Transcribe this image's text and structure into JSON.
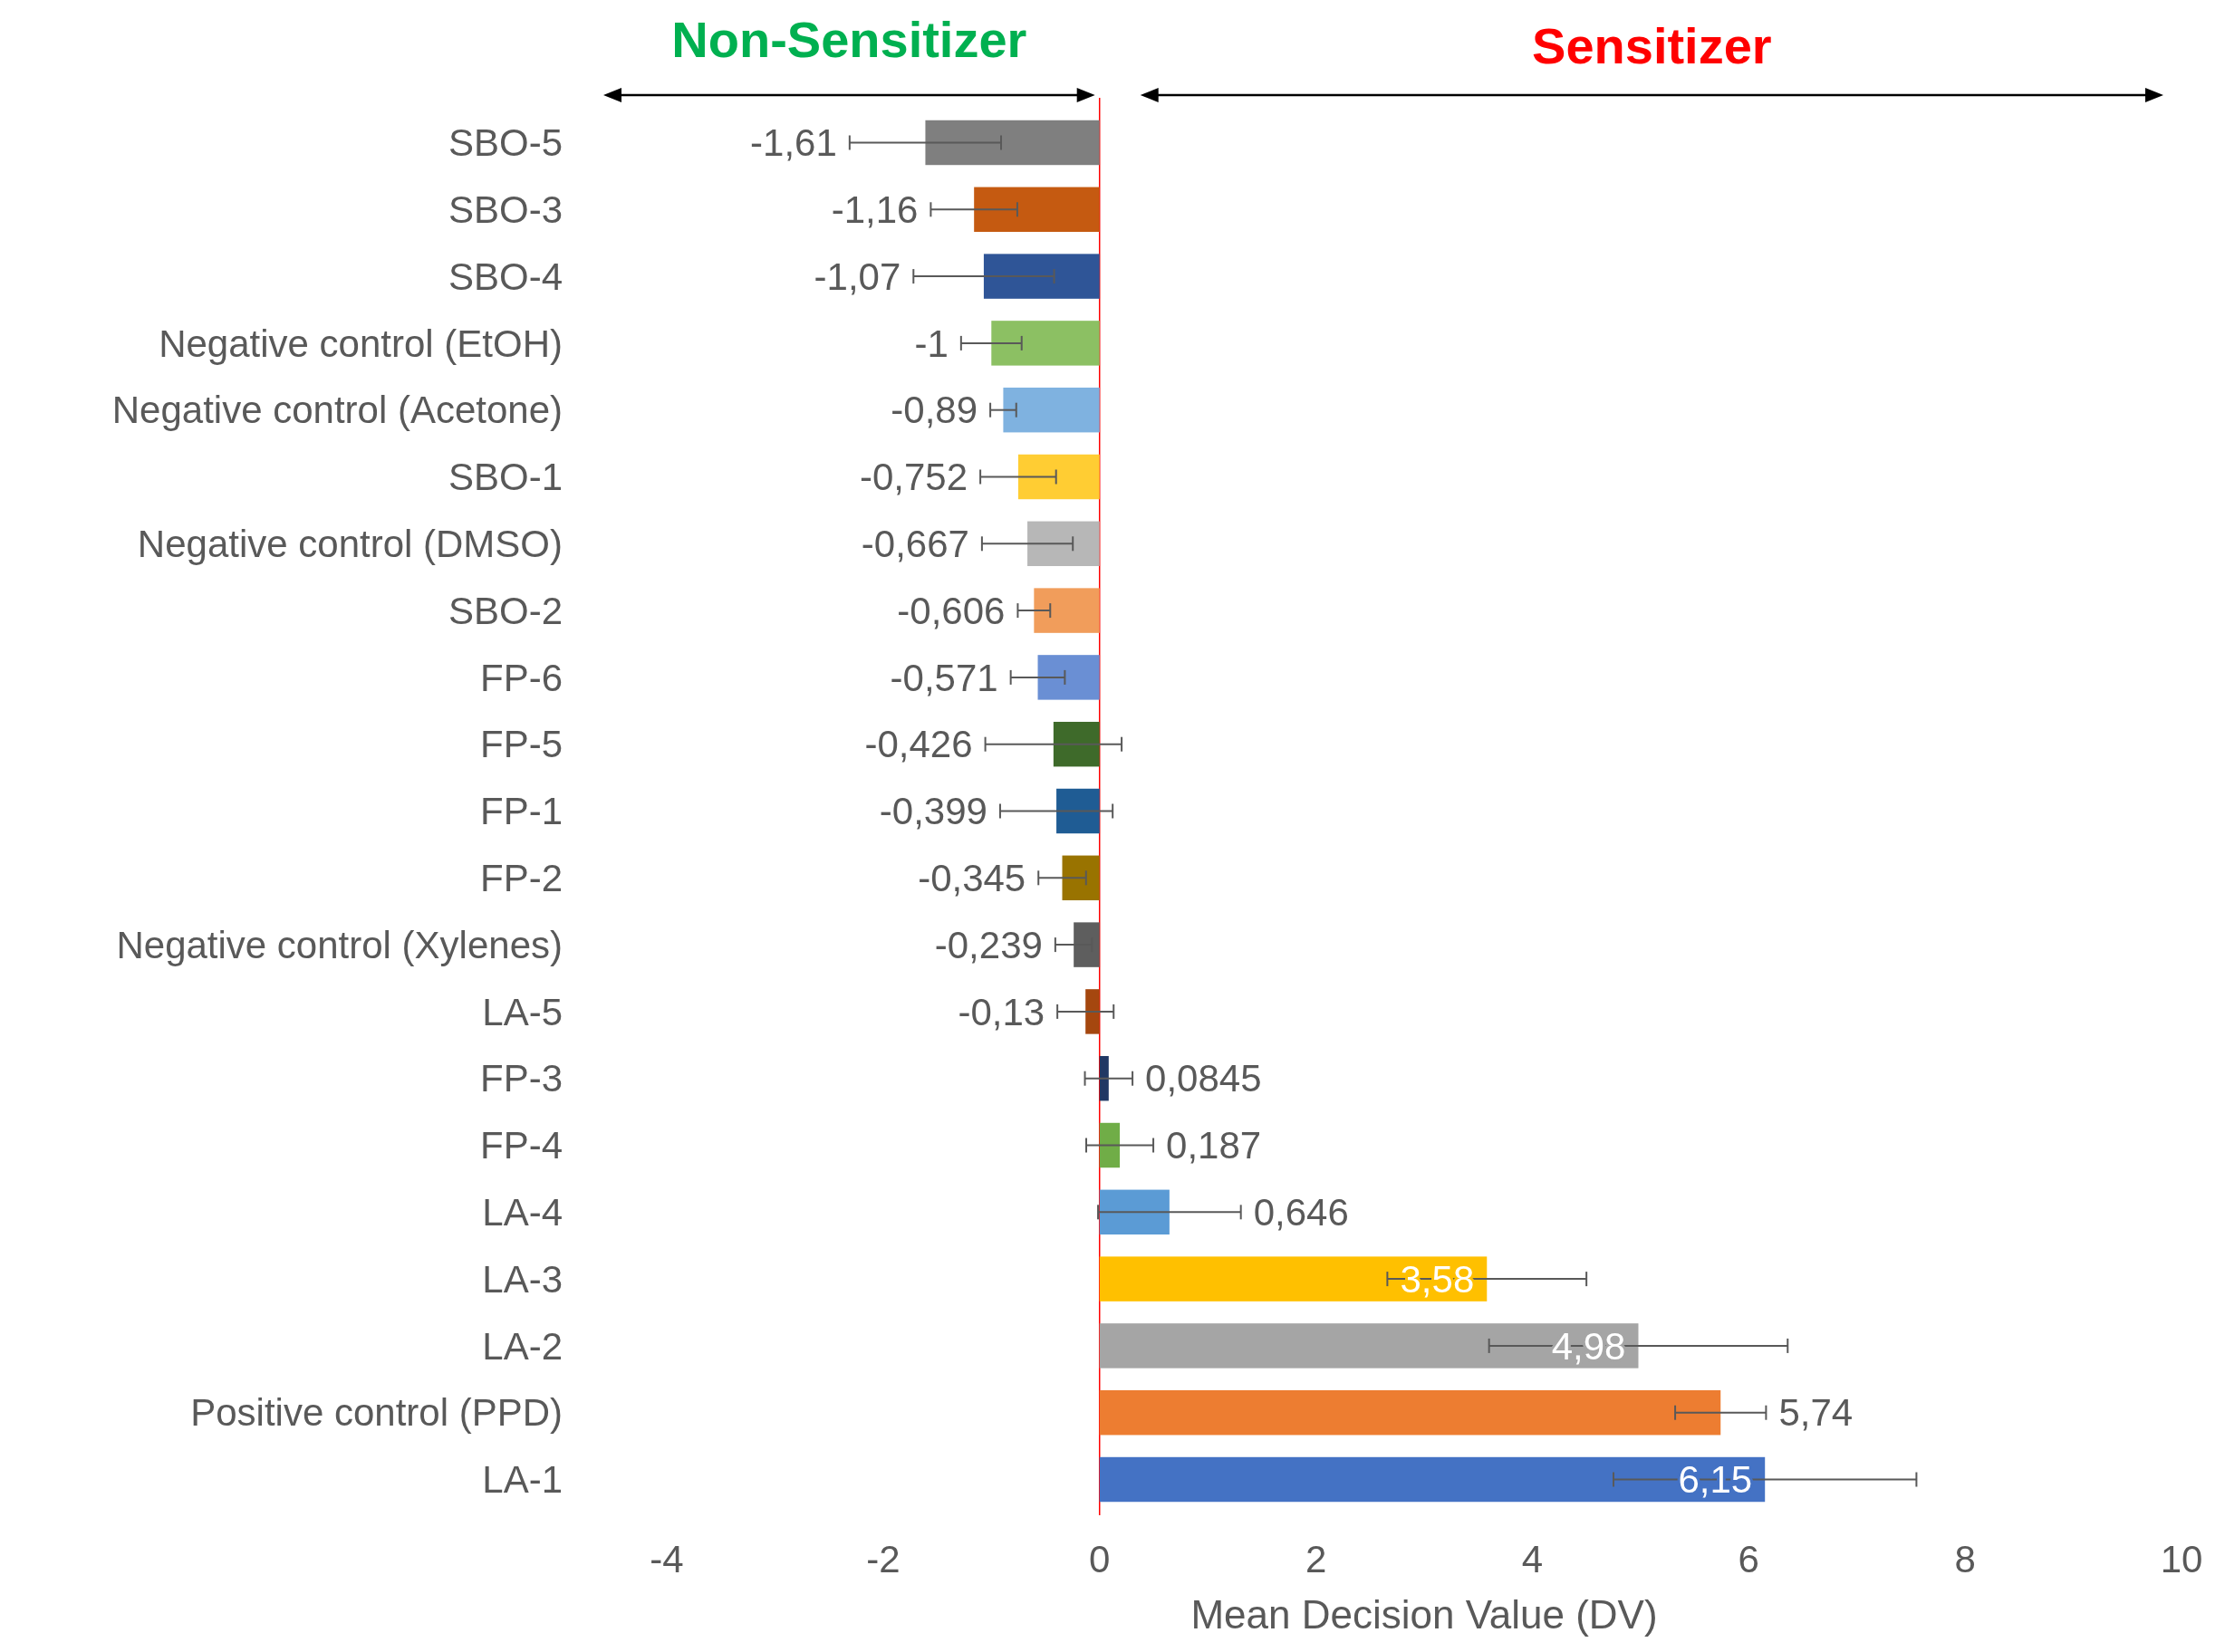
{
  "chart_data": {
    "type": "bar",
    "orientation": "horizontal",
    "xlabel": "Mean Decision Value (DV)",
    "categories": [
      "SBO-5",
      "SBO-3",
      "SBO-4",
      "Negative  control (EtOH)",
      "Negative  control (Acetone)",
      "SBO-1",
      "Negative  control (DMSO)",
      "SBO-2",
      "FP-6",
      "FP-5",
      "FP-1",
      "FP-2",
      "Negative control (Xylenes)",
      "LA-5",
      "FP-3",
      "FP-4",
      "LA-4",
      "LA-3",
      "LA-2",
      "Positive control (PPD)",
      "LA-1"
    ],
    "values": [
      -1.61,
      -1.16,
      -1.07,
      -1,
      -0.89,
      -0.752,
      -0.667,
      -0.606,
      -0.571,
      -0.426,
      -0.399,
      -0.345,
      -0.239,
      -0.13,
      0.0845,
      0.187,
      0.646,
      3.58,
      4.98,
      5.74,
      6.15
    ],
    "value_labels": [
      "-1,61",
      "-1,16",
      "-1,07",
      "-1",
      "-0,89",
      "-0,752",
      "-0,667",
      "-0,606",
      "-0,571",
      "-0,426",
      "-0,399",
      "-0,345",
      "-0,239",
      "-0,13",
      "0,0845",
      "0,187",
      "0,646",
      "3,58",
      "4,98",
      "5,74",
      "6,15"
    ],
    "errors": [
      0.7,
      0.4,
      0.65,
      0.28,
      0.12,
      0.35,
      0.42,
      0.15,
      0.25,
      0.63,
      0.52,
      0.22,
      0.17,
      0.26,
      0.22,
      0.31,
      0.66,
      0.92,
      1.38,
      0.42,
      1.4
    ],
    "colors": [
      "#7f7f7f",
      "#c55a11",
      "#2f5597",
      "#8cc063",
      "#7fb2e0",
      "#ffcd33",
      "#b7b7b7",
      "#f19d5b",
      "#6a8fd4",
      "#3e6a2a",
      "#1f5c94",
      "#997300",
      "#5e5e5e",
      "#a5470f",
      "#203864",
      "#70ad47",
      "#5b9bd5",
      "#ffc000",
      "#a5a5a5",
      "#ed7d31",
      "#4472c4"
    ],
    "xlim": [
      -4,
      10
    ],
    "xticks": [
      -4,
      -2,
      0,
      2,
      4,
      6,
      8,
      10
    ],
    "grid": false,
    "ref_lines": [
      {
        "axis": "x",
        "value": 0,
        "color": "#ff0000"
      }
    ],
    "annotations": [
      "Non-Sensitizer",
      "Sensitizer"
    ]
  }
}
